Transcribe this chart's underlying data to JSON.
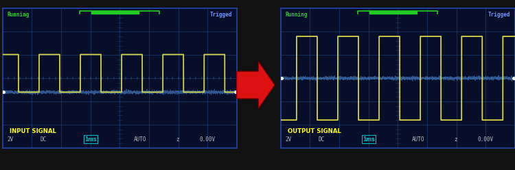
{
  "screen_bg": "#060e2a",
  "grid_color": "#1e3a6e",
  "signal_color": "#d4d444",
  "noise_color": "#4477bb",
  "running_color": "#33cc33",
  "trigged_color": "#7799ff",
  "label_color": "#ffff00",
  "bottom_text_color": "#bbbbbb",
  "timebox_color": "#00bbbb",
  "arrow_color": "#dd1111",
  "outer_bg": "#111111",
  "scope1_label": "INPUT SIGNAL",
  "scope2_label": "OUTPUT SIGNAL",
  "bottom_labels": [
    "2V",
    "DC",
    "1ms",
    "AUTO",
    "z",
    "0.00V"
  ],
  "top_left": "Running",
  "top_right": "Trigged",
  "figsize": [
    7.5,
    2.48
  ],
  "dpi": 100,
  "input_high": 0.67,
  "input_low": 0.4,
  "output_high": 0.8,
  "output_low": 0.2
}
